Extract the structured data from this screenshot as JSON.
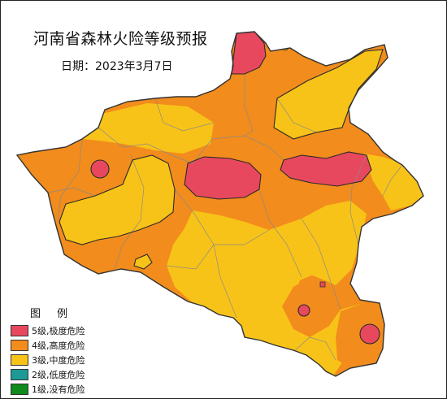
{
  "map": {
    "title": "河南省森林火险等级预报",
    "date_line": "日期：2023年3月7日",
    "colors": {
      "level5": "#e8485e",
      "level4": "#f28c1c",
      "level3": "#f8c318",
      "level2": "#1e9a96",
      "level1": "#0f8a1c",
      "boundary": "#333333",
      "county_lines": "#8a8a8a"
    }
  },
  "legend": {
    "title": "图 例",
    "items": [
      {
        "label": "5级,极度危险",
        "color": "#e8485e"
      },
      {
        "label": "4级,高度危险",
        "color": "#f28c1c"
      },
      {
        "label": "3级,中度危险",
        "color": "#f8c318"
      },
      {
        "label": "2级,低度危险",
        "color": "#1e9a96"
      },
      {
        "label": "1级,没有危险",
        "color": "#0f8a1c"
      }
    ]
  }
}
